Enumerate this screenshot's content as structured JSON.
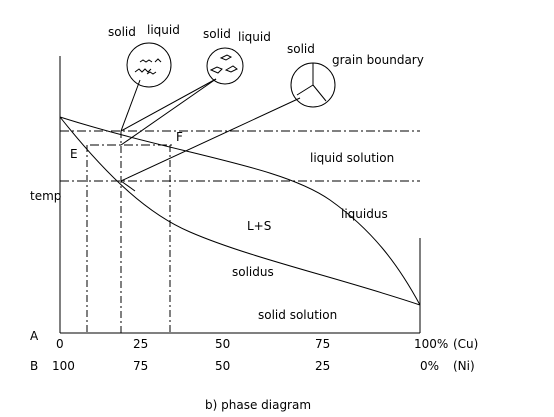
{
  "bubble_labels": {
    "b1_left": "solid",
    "b1_right": "liquid",
    "b2_left": "solid",
    "b2_right": "liquid",
    "b3_left": "solid",
    "b3_right": "grain boundary"
  },
  "regions": {
    "liquid": "liquid solution",
    "two_phase": "L+S",
    "solid": "solid solution"
  },
  "curves": {
    "liquidus": "liquidus",
    "solidus": "solidus"
  },
  "points": {
    "e": "E",
    "f": "F"
  },
  "y_axis_label": "temp",
  "row_a": {
    "label": "A",
    "ticks": [
      "0",
      "25",
      "50",
      "75",
      "100%"
    ],
    "unit": "(Cu)"
  },
  "row_b": {
    "label": "B",
    "ticks": [
      "100",
      "75",
      "50",
      "25",
      "0%"
    ],
    "unit": "(Ni)"
  },
  "caption": "b) phase diagram"
}
